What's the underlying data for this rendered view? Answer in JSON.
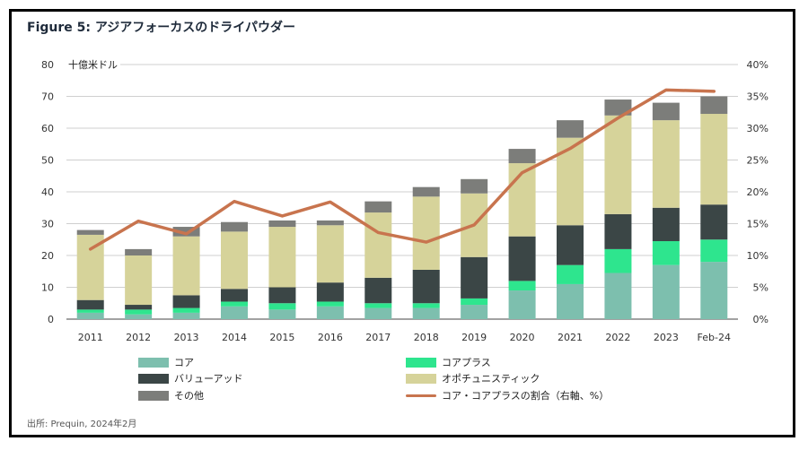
{
  "title": "Figure 5: アジアフォーカスのドライパウダー",
  "source": "出所: Prequin, 2024年2月",
  "chart_data": {
    "type": "bar",
    "stacked": true,
    "categories": [
      "2011",
      "2012",
      "2013",
      "2014",
      "2015",
      "2016",
      "2017",
      "2018",
      "2019",
      "2020",
      "2021",
      "2022",
      "2023",
      "Feb-24"
    ],
    "y_unit_label": "十億米ドル",
    "ylim": [
      0,
      80
    ],
    "yticks": [
      0,
      10,
      20,
      30,
      40,
      50,
      60,
      70,
      80
    ],
    "y2lim": [
      0,
      40
    ],
    "y2ticks": [
      "0%",
      "5%",
      "10%",
      "15%",
      "20%",
      "25%",
      "30%",
      "35%",
      "40%"
    ],
    "series": [
      {
        "name": "コア",
        "color": "#7dbfae",
        "values": [
          2,
          1.5,
          2,
          4,
          3,
          4,
          3.5,
          3.5,
          4.5,
          9,
          11,
          14.5,
          17,
          18
        ]
      },
      {
        "name": "コアプラス",
        "color": "#2ee58e",
        "values": [
          1,
          1.5,
          1.5,
          1.5,
          2,
          1.5,
          1.5,
          1.5,
          2,
          3,
          6,
          7.5,
          7.5,
          7
        ]
      },
      {
        "name": "バリューアッド",
        "color": "#3b4646",
        "values": [
          3,
          1.5,
          4,
          4,
          5,
          6,
          8,
          10.5,
          13,
          14,
          12.5,
          11,
          10.5,
          11
        ]
      },
      {
        "name": "オポチュニスティック",
        "color": "#d6d39a",
        "values": [
          20.5,
          15.5,
          18.5,
          18,
          19,
          18,
          20.5,
          23,
          20,
          23,
          27.5,
          31,
          27.5,
          28.5
        ]
      },
      {
        "name": "その他",
        "color": "#7c7d7a",
        "values": [
          1.5,
          2,
          3,
          3,
          2,
          1.5,
          3.5,
          3,
          4.5,
          4.5,
          5.5,
          5,
          5.5,
          5.5
        ]
      }
    ],
    "line_series": {
      "name": "コア・コアプラスの割合（右軸、%）",
      "color": "#c8744e",
      "values": [
        11,
        15.4,
        13.4,
        18.5,
        16.2,
        18.4,
        13.6,
        12.1,
        14.8,
        23,
        26.8,
        31.6,
        36,
        35.8
      ]
    }
  },
  "legend": [
    {
      "label": "コア",
      "kind": "bar"
    },
    {
      "label": "コアプラス",
      "kind": "bar"
    },
    {
      "label": "バリューアッド",
      "kind": "bar"
    },
    {
      "label": "オポチュニスティック",
      "kind": "bar"
    },
    {
      "label": "その他",
      "kind": "bar"
    },
    {
      "label": "コア・コアプラスの割合（右軸、%）",
      "kind": "line"
    }
  ]
}
